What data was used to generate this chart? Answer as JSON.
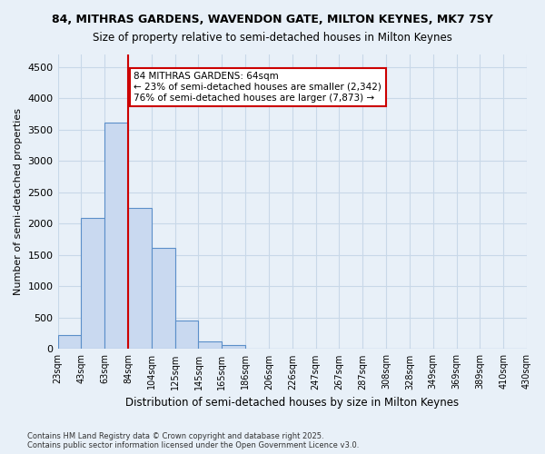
{
  "title1": "84, MITHRAS GARDENS, WAVENDON GATE, MILTON KEYNES, MK7 7SY",
  "title2": "Size of property relative to semi-detached houses in Milton Keynes",
  "xlabel": "Distribution of semi-detached houses by size in Milton Keynes",
  "ylabel": "Number of semi-detached properties",
  "footnote": "Contains HM Land Registry data © Crown copyright and database right 2025.\nContains public sector information licensed under the Open Government Licence v3.0.",
  "bar_color": "#c9d9f0",
  "bar_edge_color": "#5b8fc9",
  "grid_color": "#c8d8e8",
  "background_color": "#e8f0f8",
  "annotation_box_color": "#ffffff",
  "annotation_box_edge": "#cc0000",
  "vline_color": "#cc0000",
  "bin_labels": [
    "23sqm",
    "43sqm",
    "63sqm",
    "84sqm",
    "104sqm",
    "125sqm",
    "145sqm",
    "165sqm",
    "186sqm",
    "206sqm",
    "226sqm",
    "247sqm",
    "267sqm",
    "287sqm",
    "308sqm",
    "328sqm",
    "349sqm",
    "369sqm",
    "389sqm",
    "410sqm",
    "430sqm"
  ],
  "values": [
    220,
    2090,
    3620,
    2250,
    1620,
    460,
    120,
    60,
    10,
    0,
    0,
    0,
    0,
    0,
    0,
    0,
    0,
    0,
    0,
    0
  ],
  "vline_x": 2.5,
  "annotation_text": "84 MITHRAS GARDENS: 64sqm\n← 23% of semi-detached houses are smaller (2,342)\n76% of semi-detached houses are larger (7,873) →",
  "ylim": [
    0,
    4700
  ],
  "yticks": [
    0,
    500,
    1000,
    1500,
    2000,
    2500,
    3000,
    3500,
    4000,
    4500
  ]
}
